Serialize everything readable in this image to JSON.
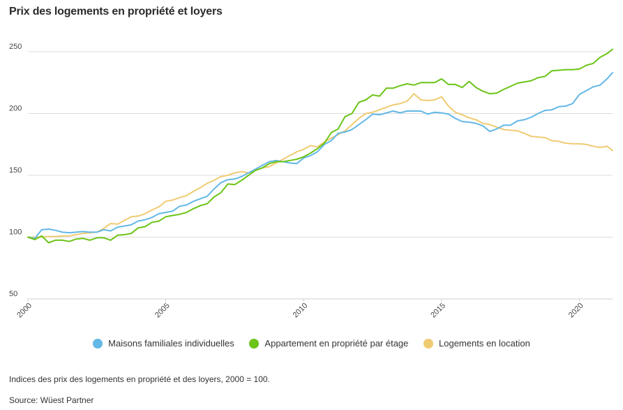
{
  "chart_data": {
    "type": "line",
    "title": "Prix des logements en propriété et loyers",
    "xlabel": "",
    "ylabel": "",
    "xlim": [
      2000,
      2021.2
    ],
    "ylim": [
      50,
      250
    ],
    "yticks": [
      50,
      100,
      150,
      200,
      250
    ],
    "xticks": [
      "2000",
      "2005",
      "2010",
      "2015",
      "2020"
    ],
    "grid": true,
    "legend_position": "bottom",
    "series": [
      {
        "name": "Maisons familiales individuelles",
        "color": "#63b8e6",
        "points": [
          [
            2000.0,
            100
          ],
          [
            2000.25,
            99
          ],
          [
            2000.5,
            106
          ],
          [
            2000.75,
            106.5
          ],
          [
            2001.0,
            105.5
          ],
          [
            2001.25,
            104
          ],
          [
            2001.5,
            103.5
          ],
          [
            2001.75,
            104
          ],
          [
            2002.0,
            104.5
          ],
          [
            2002.25,
            104
          ],
          [
            2002.5,
            104
          ],
          [
            2002.75,
            106
          ],
          [
            2003.0,
            105
          ],
          [
            2003.25,
            108
          ],
          [
            2003.5,
            109
          ],
          [
            2003.75,
            110
          ],
          [
            2004.0,
            113
          ],
          [
            2004.25,
            114
          ],
          [
            2004.5,
            116
          ],
          [
            2004.75,
            119
          ],
          [
            2005.0,
            120
          ],
          [
            2005.25,
            121
          ],
          [
            2005.5,
            125
          ],
          [
            2005.75,
            126
          ],
          [
            2006.0,
            129
          ],
          [
            2006.25,
            131
          ],
          [
            2006.5,
            133
          ],
          [
            2006.75,
            139
          ],
          [
            2007.0,
            144
          ],
          [
            2007.25,
            146.5
          ],
          [
            2007.5,
            147
          ],
          [
            2007.75,
            149
          ],
          [
            2008.0,
            152
          ],
          [
            2008.25,
            155
          ],
          [
            2008.5,
            158
          ],
          [
            2008.75,
            161
          ],
          [
            2009.0,
            162
          ],
          [
            2009.25,
            161
          ],
          [
            2009.5,
            160
          ],
          [
            2009.75,
            159.5
          ],
          [
            2010.0,
            164
          ],
          [
            2010.25,
            166
          ],
          [
            2010.5,
            169
          ],
          [
            2010.75,
            175
          ],
          [
            2011.0,
            178
          ],
          [
            2011.25,
            184
          ],
          [
            2011.5,
            185
          ],
          [
            2011.75,
            187
          ],
          [
            2012.0,
            191
          ],
          [
            2012.25,
            195
          ],
          [
            2012.5,
            199.5
          ],
          [
            2012.75,
            199
          ],
          [
            2013.0,
            200.5
          ],
          [
            2013.25,
            202
          ],
          [
            2013.5,
            200.5
          ],
          [
            2013.75,
            202
          ],
          [
            2014.0,
            202
          ],
          [
            2014.25,
            202
          ],
          [
            2014.5,
            199.5
          ],
          [
            2014.75,
            201
          ],
          [
            2015.0,
            200.5
          ],
          [
            2015.25,
            199.5
          ],
          [
            2015.5,
            196
          ],
          [
            2015.75,
            193.5
          ],
          [
            2016.0,
            193
          ],
          [
            2016.25,
            192
          ],
          [
            2016.5,
            190
          ],
          [
            2016.75,
            185.5
          ],
          [
            2017.0,
            187.5
          ],
          [
            2017.25,
            190.5
          ],
          [
            2017.5,
            190.5
          ],
          [
            2017.75,
            194
          ],
          [
            2018.0,
            195
          ],
          [
            2018.25,
            197
          ],
          [
            2018.5,
            200
          ],
          [
            2018.75,
            202.5
          ],
          [
            2019.0,
            203
          ],
          [
            2019.25,
            205.5
          ],
          [
            2019.5,
            206
          ],
          [
            2019.75,
            208
          ],
          [
            2020.0,
            215.5
          ],
          [
            2020.25,
            218.5
          ],
          [
            2020.5,
            221.5
          ],
          [
            2020.75,
            223
          ],
          [
            2021.0,
            228
          ],
          [
            2021.2,
            233
          ]
        ]
      },
      {
        "name": "Appartement en propriété par étage",
        "color": "#6cc417",
        "points": [
          [
            2000.0,
            100
          ],
          [
            2000.25,
            98
          ],
          [
            2000.5,
            101
          ],
          [
            2000.75,
            95.5
          ],
          [
            2001.0,
            97.5
          ],
          [
            2001.25,
            97.5
          ],
          [
            2001.5,
            96.5
          ],
          [
            2001.75,
            98.5
          ],
          [
            2002.0,
            99
          ],
          [
            2002.25,
            97.5
          ],
          [
            2002.5,
            99.5
          ],
          [
            2002.75,
            99.5
          ],
          [
            2003.0,
            97.5
          ],
          [
            2003.25,
            101.5
          ],
          [
            2003.5,
            102
          ],
          [
            2003.75,
            103
          ],
          [
            2004.0,
            107.5
          ],
          [
            2004.25,
            108.5
          ],
          [
            2004.5,
            112
          ],
          [
            2004.75,
            113
          ],
          [
            2005.0,
            116.5
          ],
          [
            2005.25,
            117.5
          ],
          [
            2005.5,
            118.5
          ],
          [
            2005.75,
            120
          ],
          [
            2006.0,
            123
          ],
          [
            2006.25,
            125.5
          ],
          [
            2006.5,
            127
          ],
          [
            2006.75,
            132.5
          ],
          [
            2007.0,
            136
          ],
          [
            2007.25,
            143
          ],
          [
            2007.5,
            142.5
          ],
          [
            2007.75,
            146
          ],
          [
            2008.0,
            150
          ],
          [
            2008.25,
            154
          ],
          [
            2008.5,
            156
          ],
          [
            2008.75,
            159.5
          ],
          [
            2009.0,
            161
          ],
          [
            2009.25,
            161
          ],
          [
            2009.5,
            162
          ],
          [
            2009.75,
            163
          ],
          [
            2010.0,
            165
          ],
          [
            2010.25,
            168
          ],
          [
            2010.5,
            171.5
          ],
          [
            2010.75,
            176
          ],
          [
            2011.0,
            184.5
          ],
          [
            2011.25,
            187.5
          ],
          [
            2011.5,
            197.5
          ],
          [
            2011.75,
            200
          ],
          [
            2012.0,
            209
          ],
          [
            2012.25,
            211
          ],
          [
            2012.5,
            215
          ],
          [
            2012.75,
            214
          ],
          [
            2013.0,
            220.5
          ],
          [
            2013.25,
            220.5
          ],
          [
            2013.5,
            222.5
          ],
          [
            2013.75,
            224
          ],
          [
            2014.0,
            223
          ],
          [
            2014.25,
            225
          ],
          [
            2014.5,
            225
          ],
          [
            2014.75,
            225
          ],
          [
            2015.0,
            228
          ],
          [
            2015.25,
            223.5
          ],
          [
            2015.5,
            223.5
          ],
          [
            2015.75,
            221
          ],
          [
            2016.0,
            226
          ],
          [
            2016.25,
            221
          ],
          [
            2016.5,
            218
          ],
          [
            2016.75,
            216
          ],
          [
            2017.0,
            216.5
          ],
          [
            2017.25,
            219.5
          ],
          [
            2017.5,
            222
          ],
          [
            2017.75,
            224.5
          ],
          [
            2018.0,
            225.5
          ],
          [
            2018.25,
            226.5
          ],
          [
            2018.5,
            229
          ],
          [
            2018.75,
            230
          ],
          [
            2019.0,
            234.5
          ],
          [
            2019.25,
            235
          ],
          [
            2019.5,
            235.5
          ],
          [
            2019.75,
            235.5
          ],
          [
            2020.0,
            236
          ],
          [
            2020.25,
            239
          ],
          [
            2020.5,
            240.5
          ],
          [
            2020.75,
            245.5
          ],
          [
            2021.0,
            248.5
          ],
          [
            2021.2,
            252
          ]
        ]
      },
      {
        "name": "Logements en location",
        "color": "#efcb72",
        "points": [
          [
            2000.0,
            100
          ],
          [
            2000.25,
            100
          ],
          [
            2000.5,
            100
          ],
          [
            2000.75,
            100.5
          ],
          [
            2001.0,
            100.5
          ],
          [
            2001.25,
            101
          ],
          [
            2001.5,
            101
          ],
          [
            2001.75,
            102
          ],
          [
            2002.0,
            103
          ],
          [
            2002.25,
            103.5
          ],
          [
            2002.5,
            104
          ],
          [
            2002.75,
            107
          ],
          [
            2003.0,
            111
          ],
          [
            2003.25,
            110.5
          ],
          [
            2003.5,
            113.5
          ],
          [
            2003.75,
            116.5
          ],
          [
            2004.0,
            117
          ],
          [
            2004.25,
            119
          ],
          [
            2004.5,
            122
          ],
          [
            2004.75,
            124.5
          ],
          [
            2005.0,
            129
          ],
          [
            2005.25,
            130
          ],
          [
            2005.5,
            132
          ],
          [
            2005.75,
            133.5
          ],
          [
            2006.0,
            137
          ],
          [
            2006.25,
            140
          ],
          [
            2006.5,
            143.5
          ],
          [
            2006.75,
            146
          ],
          [
            2007.0,
            149
          ],
          [
            2007.25,
            150
          ],
          [
            2007.5,
            152
          ],
          [
            2007.75,
            153
          ],
          [
            2008.0,
            152
          ],
          [
            2008.25,
            154
          ],
          [
            2008.5,
            156
          ],
          [
            2008.75,
            157
          ],
          [
            2009.0,
            160
          ],
          [
            2009.25,
            163
          ],
          [
            2009.5,
            166
          ],
          [
            2009.75,
            169
          ],
          [
            2010.0,
            171
          ],
          [
            2010.25,
            174
          ],
          [
            2010.5,
            173
          ],
          [
            2010.75,
            177
          ],
          [
            2011.0,
            180
          ],
          [
            2011.25,
            183
          ],
          [
            2011.5,
            186
          ],
          [
            2011.75,
            191
          ],
          [
            2012.0,
            196
          ],
          [
            2012.25,
            200
          ],
          [
            2012.5,
            201
          ],
          [
            2012.75,
            203
          ],
          [
            2013.0,
            205
          ],
          [
            2013.25,
            207
          ],
          [
            2013.5,
            208
          ],
          [
            2013.75,
            210
          ],
          [
            2014.0,
            216
          ],
          [
            2014.25,
            211
          ],
          [
            2014.5,
            210.5
          ],
          [
            2014.75,
            211
          ],
          [
            2015.0,
            213.5
          ],
          [
            2015.25,
            206
          ],
          [
            2015.5,
            201
          ],
          [
            2015.75,
            199
          ],
          [
            2016.0,
            196.5
          ],
          [
            2016.25,
            195
          ],
          [
            2016.5,
            192
          ],
          [
            2016.75,
            191
          ],
          [
            2017.0,
            189
          ],
          [
            2017.25,
            187
          ],
          [
            2017.5,
            186.5
          ],
          [
            2017.75,
            186
          ],
          [
            2018.0,
            184
          ],
          [
            2018.25,
            181.5
          ],
          [
            2018.5,
            181
          ],
          [
            2018.75,
            180.5
          ],
          [
            2019.0,
            178
          ],
          [
            2019.25,
            177.5
          ],
          [
            2019.5,
            176
          ],
          [
            2019.75,
            175.5
          ],
          [
            2020.0,
            175.5
          ],
          [
            2020.25,
            175
          ],
          [
            2020.5,
            173.5
          ],
          [
            2020.75,
            172.5
          ],
          [
            2021.0,
            173.5
          ],
          [
            2021.2,
            170
          ]
        ]
      }
    ]
  },
  "legend": {
    "items": [
      {
        "label": "Maisons familiales individuelles",
        "color": "#63b8e6"
      },
      {
        "label": "Appartement en propriété par étage",
        "color": "#6cc417"
      },
      {
        "label": "Logements en location",
        "color": "#efcb72"
      }
    ]
  },
  "note": "Indices des prix des logements en propriété et des loyers, 2000 = 100.",
  "source": "Source: Wüest Partner"
}
